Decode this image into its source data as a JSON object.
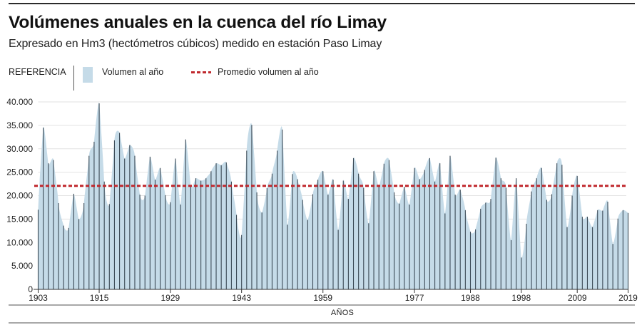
{
  "header": {
    "title": "Volúmenes anuales en la cuenca del río Limay",
    "subtitle": "Expresado en Hm3 (hectómetros cúbicos) medido en estación Paso Limay"
  },
  "legend": {
    "label": "REFERENCIA",
    "items": [
      {
        "label": "Volumen al año",
        "color": "#c5dbe8",
        "icon": "area-swatch"
      },
      {
        "label": "Promedio volumen al año",
        "color": "#c0282d",
        "icon": "dashed-line"
      }
    ]
  },
  "colors": {
    "area_fill": "#c5dbe8",
    "year_line": "#3b4a56",
    "average_line": "#c0282d",
    "grid": "#e2e2e2"
  },
  "chart_data": {
    "type": "area",
    "title": "Volúmenes anuales en la cuenca del río Limay",
    "subtitle": "Expresado en Hm3 (hectómetros cúbicos) medido en estación Paso Limay",
    "xlabel": "AÑOS",
    "ylabel": "",
    "x_start": 1903,
    "x_end": 2019,
    "ylim": [
      0,
      40000
    ],
    "y_ticks": [
      0,
      5000,
      10000,
      15000,
      20000,
      25000,
      30000,
      35000,
      40000
    ],
    "y_tick_labels": [
      "0",
      "5.000",
      "10.000",
      "15.000",
      "20.000",
      "25.000",
      "30.000",
      "35.000",
      "40.000"
    ],
    "x_ticks": [
      1903,
      1915,
      1929,
      1943,
      1959,
      1977,
      1988,
      1998,
      2009,
      2019
    ],
    "x_tick_labels": [
      "1903",
      "1915",
      "1929",
      "1943",
      "1959",
      "1977",
      "1988",
      "1998",
      "2009",
      "2019"
    ],
    "grid": true,
    "legend_position": "top-left",
    "series": [
      {
        "name": "Volumen al año",
        "type": "area",
        "values": [
          17000,
          34500,
          26900,
          27600,
          18400,
          13600,
          13100,
          20400,
          15000,
          18400,
          28500,
          31500,
          39700,
          23000,
          18200,
          31800,
          33400,
          27900,
          30800,
          28500,
          20200,
          20000,
          28300,
          23400,
          25900,
          20100,
          18600,
          27900,
          18100,
          32000,
          22200,
          23700,
          23200,
          23700,
          25200,
          26900,
          26500,
          27100,
          23000,
          15900,
          11600,
          29600,
          35100,
          20700,
          16400,
          21600,
          24700,
          29600,
          34100,
          13800,
          24600,
          23500,
          19100,
          14800,
          20300,
          23400,
          25200,
          20200,
          23400,
          12700,
          23200,
          19300,
          28000,
          24700,
          21700,
          14100,
          25200,
          21900,
          26800,
          27600,
          20700,
          18300,
          21900,
          18100,
          25900,
          23500,
          25500,
          28000,
          23000,
          26900,
          16200,
          28500,
          20200,
          21300,
          16900,
          12300,
          12800,
          17200,
          18500,
          19300,
          28100,
          23700,
          21700,
          10500,
          23700,
          6800,
          14000,
          20900,
          23700,
          25900,
          19100,
          20300,
          26900,
          26600,
          13300,
          20000,
          24200,
          15500,
          15500,
          13300,
          16900,
          16800,
          18700,
          9700,
          15100,
          16900,
          16300
        ]
      },
      {
        "name": "Promedio volumen al año",
        "type": "line",
        "style": "dashed",
        "value": 22100
      }
    ]
  }
}
